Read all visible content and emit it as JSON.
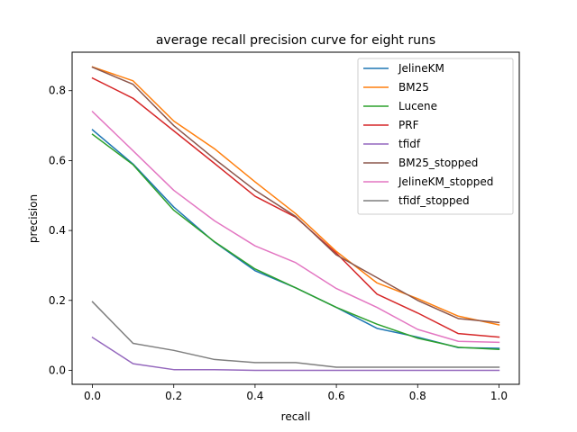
{
  "chart_data": {
    "type": "line",
    "title": "average recall precision curve for eight runs",
    "xlabel": "recall",
    "ylabel": "precision",
    "xlim": [
      -0.05,
      1.05
    ],
    "ylim": [
      -0.04,
      0.91
    ],
    "xticks": [
      0.0,
      0.2,
      0.4,
      0.6,
      0.8,
      1.0
    ],
    "xtick_labels": [
      "0.0",
      "0.2",
      "0.4",
      "0.6",
      "0.8",
      "1.0"
    ],
    "yticks": [
      0.0,
      0.2,
      0.4,
      0.6,
      0.8
    ],
    "ytick_labels": [
      "0.0",
      "0.2",
      "0.4",
      "0.6",
      "0.8"
    ],
    "grid": false,
    "legend_position": "top-right",
    "x": [
      0.0,
      0.1,
      0.2,
      0.3,
      0.4,
      0.5,
      0.6,
      0.7,
      0.8,
      0.9,
      1.0
    ],
    "series": [
      {
        "name": "JelineKM",
        "color": "#1f77b4",
        "values": [
          0.688,
          0.59,
          0.467,
          0.367,
          0.285,
          0.236,
          0.18,
          0.12,
          0.095,
          0.065,
          0.063
        ]
      },
      {
        "name": "BM25",
        "color": "#ff7f0e",
        "values": [
          0.868,
          0.828,
          0.713,
          0.634,
          0.539,
          0.448,
          0.34,
          0.25,
          0.205,
          0.155,
          0.13
        ]
      },
      {
        "name": "Lucene",
        "color": "#2ca02c",
        "values": [
          0.675,
          0.588,
          0.458,
          0.368,
          0.29,
          0.236,
          0.18,
          0.132,
          0.092,
          0.066,
          0.06
        ]
      },
      {
        "name": "PRF",
        "color": "#d62728",
        "values": [
          0.836,
          0.778,
          0.685,
          0.592,
          0.498,
          0.438,
          0.335,
          0.218,
          0.164,
          0.105,
          0.095
        ]
      },
      {
        "name": "tfidf",
        "color": "#9467bd",
        "values": [
          0.094,
          0.019,
          0.002,
          0.002,
          0.0,
          0.0,
          0.0,
          0.0,
          0.0,
          0.0,
          0.0
        ]
      },
      {
        "name": "BM25_stopped",
        "color": "#8c564b",
        "values": [
          0.867,
          0.818,
          0.7,
          0.605,
          0.515,
          0.44,
          0.33,
          0.265,
          0.2,
          0.148,
          0.137
        ]
      },
      {
        "name": "JelineKM_stopped",
        "color": "#e377c2",
        "values": [
          0.74,
          0.628,
          0.515,
          0.428,
          0.356,
          0.308,
          0.234,
          0.18,
          0.117,
          0.083,
          0.08
        ]
      },
      {
        "name": "tfidf_stopped",
        "color": "#7f7f7f",
        "values": [
          0.196,
          0.077,
          0.057,
          0.031,
          0.022,
          0.022,
          0.009,
          0.009,
          0.009,
          0.009,
          0.009
        ]
      }
    ]
  }
}
